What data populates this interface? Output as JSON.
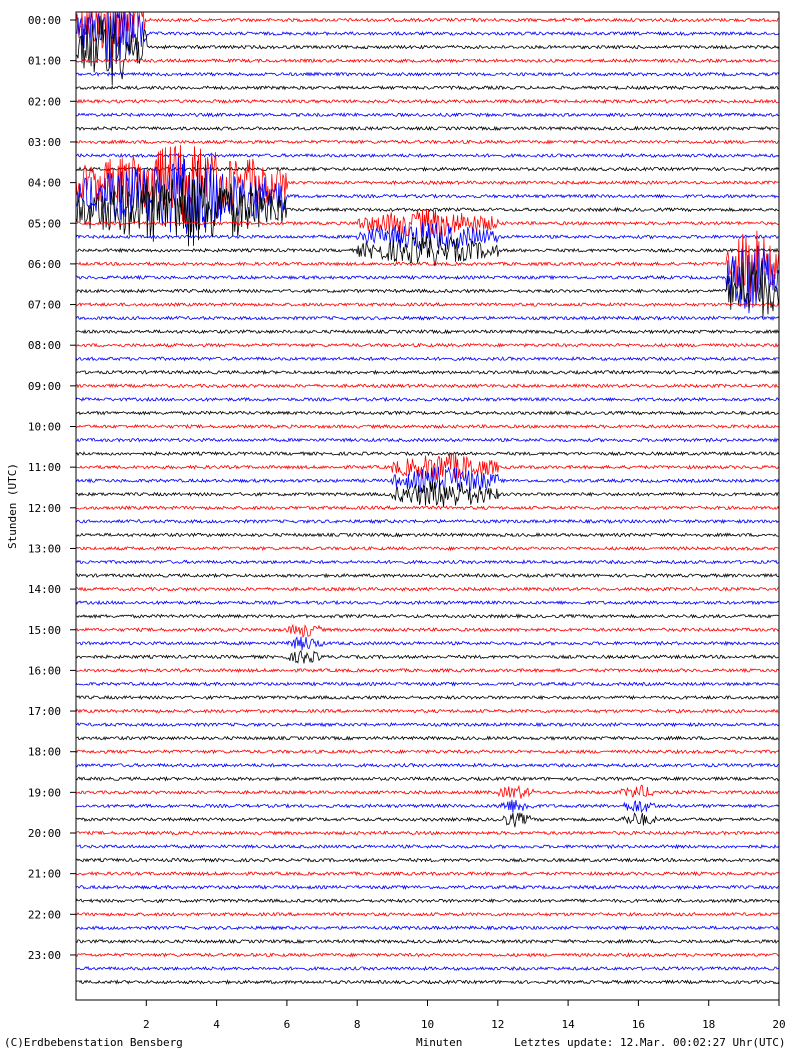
{
  "chart_data": {
    "type": "line",
    "title": "",
    "xlabel": "Minuten",
    "ylabel": "Stunden (UTC)",
    "xlim": [
      0,
      20
    ],
    "x_ticks": [
      2,
      4,
      6,
      8,
      10,
      12,
      14,
      16,
      18,
      20
    ],
    "x_tick_labels": [
      "2",
      "4",
      "6",
      "8",
      "10",
      "12",
      "14",
      "16",
      "18",
      "20"
    ],
    "y_tick_labels": [
      "00:00",
      "01:00",
      "02:00",
      "03:00",
      "04:00",
      "05:00",
      "06:00",
      "07:00",
      "08:00",
      "09:00",
      "10:00",
      "11:00",
      "12:00",
      "13:00",
      "14:00",
      "15:00",
      "16:00",
      "17:00",
      "18:00",
      "19:00",
      "20:00",
      "21:00",
      "22:00",
      "23:00"
    ],
    "traces_per_hour": 3,
    "trace_duration_minutes": 20,
    "trace_colors": [
      "#ff0000",
      "#0000ff",
      "#000000"
    ],
    "grid": false,
    "events": [
      {
        "hour": 0,
        "minute_start": 0,
        "minute_end": 2,
        "amplitude": "large"
      },
      {
        "hour": 4,
        "minute_start": 0,
        "minute_end": 6,
        "amplitude": "large"
      },
      {
        "hour": 5,
        "minute_start": 8,
        "minute_end": 12,
        "amplitude": "medium"
      },
      {
        "hour": 11,
        "minute_start": 9,
        "minute_end": 12,
        "amplitude": "medium"
      },
      {
        "hour": 15,
        "minute_start": 6,
        "minute_end": 7,
        "amplitude": "small"
      },
      {
        "hour": 19,
        "minute_start": 12,
        "minute_end": 13,
        "amplitude": "small"
      },
      {
        "hour": 19,
        "minute_start": 15.5,
        "minute_end": 16.5,
        "amplitude": "small"
      },
      {
        "hour": 6,
        "minute_start": 18.5,
        "minute_end": 20,
        "amplitude": "large"
      }
    ]
  },
  "footer": {
    "credit": "(C)Erdbebenstation Bensberg",
    "xlabel": "Minuten",
    "updated": "Letztes update: 12.Mar. 00:02:27 Uhr(UTC)"
  }
}
